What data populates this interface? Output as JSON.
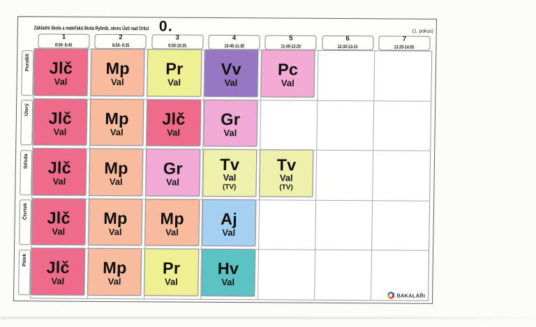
{
  "header": {
    "school_name": "Základní škola a mateřská škola Rybník, okres Ústí nad Orlicí",
    "class_label": "0.",
    "attempt_label": "(1. pokus)"
  },
  "periods": [
    {
      "number": "1",
      "time": "8:00- 8:45"
    },
    {
      "number": "2",
      "time": "8:50- 9:35"
    },
    {
      "number": "3",
      "time": "9:50-10:35"
    },
    {
      "number": "4",
      "time": "10:45-11:30"
    },
    {
      "number": "5",
      "time": "11:40-12:25"
    },
    {
      "number": "6",
      "time": "12:30-13:15"
    },
    {
      "number": "7",
      "time": "13:20-14:05"
    }
  ],
  "days": [
    {
      "name": "Pondělí",
      "lessons": [
        {
          "period": 1,
          "subject": "Jlč",
          "teacher": "Val"
        },
        {
          "period": 2,
          "subject": "Mp",
          "teacher": "Val"
        },
        {
          "period": 3,
          "subject": "Pr",
          "teacher": "Val"
        },
        {
          "period": 4,
          "subject": "Vv",
          "teacher": "Val"
        },
        {
          "period": 5,
          "subject": "Pc",
          "teacher": "Val"
        }
      ]
    },
    {
      "name": "Úterý",
      "lessons": [
        {
          "period": 1,
          "subject": "Jlč",
          "teacher": "Val"
        },
        {
          "period": 2,
          "subject": "Mp",
          "teacher": "Val"
        },
        {
          "period": 3,
          "subject": "Jlč",
          "teacher": "Val"
        },
        {
          "period": 4,
          "subject": "Gr",
          "teacher": "Val"
        }
      ]
    },
    {
      "name": "Středa",
      "lessons": [
        {
          "period": 1,
          "subject": "Jlč",
          "teacher": "Val"
        },
        {
          "period": 2,
          "subject": "Mp",
          "teacher": "Val"
        },
        {
          "period": 3,
          "subject": "Gr",
          "teacher": "Val"
        },
        {
          "period": 4,
          "subject": "Tv",
          "teacher": "Val",
          "note": "(TV)"
        },
        {
          "period": 5,
          "subject": "Tv",
          "teacher": "Val",
          "note": "(TV)"
        }
      ]
    },
    {
      "name": "Čtvrtek",
      "lessons": [
        {
          "period": 1,
          "subject": "Jlč",
          "teacher": "Val"
        },
        {
          "period": 2,
          "subject": "Mp",
          "teacher": "Val"
        },
        {
          "period": 3,
          "subject": "Mp",
          "teacher": "Val"
        },
        {
          "period": 4,
          "subject": "Aj",
          "teacher": "Val"
        }
      ]
    },
    {
      "name": "Pátek",
      "lessons": [
        {
          "period": 1,
          "subject": "Jlč",
          "teacher": "Val"
        },
        {
          "period": 2,
          "subject": "Mp",
          "teacher": "Val"
        },
        {
          "period": 3,
          "subject": "Pr",
          "teacher": "Val"
        },
        {
          "period": 4,
          "subject": "Hv",
          "teacher": "Val"
        }
      ]
    }
  ],
  "subject_colors": {
    "Jlč": "#ee6b8c",
    "Mp": "#f8bb9e",
    "Pr": "#eff094",
    "Vv": "#9776c4",
    "Pc": "#f3abd5",
    "Gr": "#f0aad5",
    "Tv": "#f0f0ad",
    "Aj": "#a5d0f2",
    "Hv": "#5cc3c5"
  },
  "brand": {
    "name": "BAKALÁŘI",
    "logo_colors": [
      "#2d6fb7",
      "#8a3f98",
      "#d22b61",
      "#e2511f",
      "#f0a81e",
      "#44a648"
    ]
  }
}
